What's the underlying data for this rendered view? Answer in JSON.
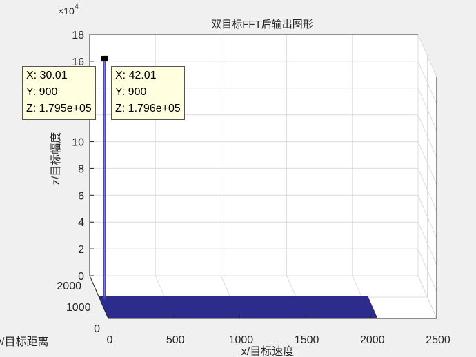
{
  "chart_data": {
    "type": "bar3d",
    "title": "双目标FFT后输出图形",
    "xlabel": "x/目标速度",
    "ylabel": "y/目标距离",
    "zlabel": "z/目标幅度",
    "z_exponent_label": "×10",
    "z_exponent_power": "4",
    "z_scale": 10000,
    "xlim": [
      0,
      2500
    ],
    "ylim": [
      0,
      2000
    ],
    "zlim": [
      0,
      180000
    ],
    "x_ticks": [
      "0",
      "500",
      "1000",
      "1500",
      "2000",
      "2500"
    ],
    "y_ticks": [
      "0",
      "1000",
      "2000"
    ],
    "z_ticks": [
      "0",
      "2",
      "4",
      "6",
      "8",
      "10",
      "12",
      "14",
      "16",
      "18"
    ],
    "grid": true,
    "surface": {
      "x_range": [
        0,
        2048
      ],
      "y_range": [
        0,
        1024
      ],
      "z": 0
    },
    "peaks": [
      {
        "x": 30.01,
        "y": 900,
        "z": 179500
      },
      {
        "x": 42.01,
        "y": 900,
        "z": 179600
      }
    ],
    "datatips": [
      {
        "x_text": "X: 30.01",
        "y_text": "Y: 900",
        "z_text": "Z: 1.795e+05"
      },
      {
        "x_text": "X: 42.01",
        "y_text": "Y: 900",
        "z_text": "Z: 1.796e+05"
      }
    ],
    "colors": {
      "surface": "#2c2c8c",
      "peak": "#4a4ab0",
      "grid": "#dcdcdc",
      "axis": "#262626",
      "pane": "#ffffff",
      "datatip_bg": "#ffffe0"
    }
  }
}
